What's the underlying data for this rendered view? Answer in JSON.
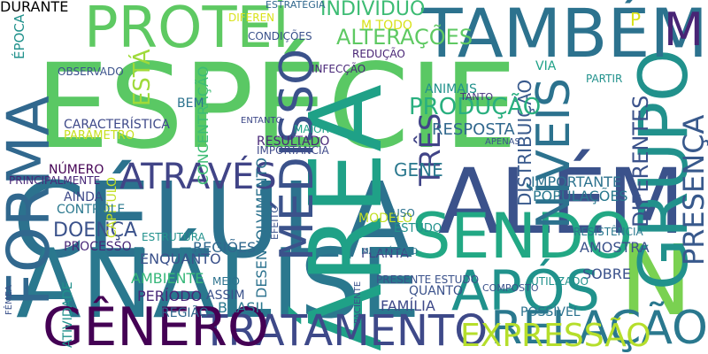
{
  "words": [
    {
      "text": "ESPÉCIE",
      "color": "#5ac864"
    },
    {
      "text": "CÉLULA",
      "color": "#2c728e"
    },
    {
      "text": "ANÁLISE",
      "color": "#2a788e"
    },
    {
      "text": "ÁREA",
      "color": "#1fa187"
    },
    {
      "text": "ALÉM",
      "color": "#3b528b"
    },
    {
      "text": "N",
      "color": "#7ad151"
    },
    {
      "text": "GRUPO",
      "color": "#21918c"
    },
    {
      "text": "TAMBÉM",
      "color": "#2c728e"
    },
    {
      "text": "FORMA",
      "color": "#31688e"
    },
    {
      "text": "PROTEÍ",
      "color": "#5ec962"
    },
    {
      "text": "SENDO",
      "color": "#22a884"
    },
    {
      "text": "APÓS",
      "color": "#20928c"
    },
    {
      "text": "NÍVEIS",
      "color": "#2c728e"
    },
    {
      "text": "TRATAMENTO",
      "color": "#3e4989"
    },
    {
      "text": "GÊNERO",
      "color": "#440154"
    },
    {
      "text": "RELAÇÃO",
      "color": "#2a788e"
    },
    {
      "text": "EXPRESSÃO",
      "color": "#b5de2b"
    },
    {
      "text": "ATRAVÉS",
      "color": "#414487"
    },
    {
      "text": "MÉDISSO",
      "color": "#3b528b"
    },
    {
      "text": "ALTERAÇÕES",
      "color": "#5ec962"
    },
    {
      "text": "INDIVÍDUO",
      "color": "#3dbc74"
    },
    {
      "text": "PRESENÇA",
      "color": "#38598c"
    },
    {
      "text": "DIFERENTES",
      "color": "#3b528b"
    },
    {
      "text": "DISTRIBUIÇÃO",
      "color": "#38598c"
    },
    {
      "text": "TRÊS",
      "color": "#414487"
    },
    {
      "text": "PRODUÇÃO",
      "color": "#29af7f"
    },
    {
      "text": "DESENVOLVIMENTO",
      "color": "#2c728e"
    },
    {
      "text": "CONCENTRAÇÃO",
      "color": "#3dbc74"
    },
    {
      "text": "ESTÁ",
      "color": "#9fda3a"
    },
    {
      "text": "M",
      "color": "#482475"
    },
    {
      "text": "P",
      "color": "#d8e219"
    },
    {
      "text": "GENE",
      "color": "#2a788e"
    },
    {
      "text": "DOENÇA",
      "color": "#3b528b"
    },
    {
      "text": "RESPOSTA",
      "color": "#31688e"
    },
    {
      "text": "IMPORTANTE",
      "color": "#2c728e"
    },
    {
      "text": "POPULAÇÕES",
      "color": "#2a788e"
    },
    {
      "text": "AMOSTRA",
      "color": "#3b528b"
    },
    {
      "text": "SOBRE",
      "color": "#3b528b"
    },
    {
      "text": "FAMÍLIA",
      "color": "#3e4989"
    },
    {
      "text": "REGIÕES",
      "color": "#31688e"
    },
    {
      "text": "PERÍODO",
      "color": "#482878"
    },
    {
      "text": "AMBIENTE",
      "color": "#35b779"
    },
    {
      "text": "ASSIM",
      "color": "#3b528b"
    },
    {
      "text": "BRASIL",
      "color": "#2a788e"
    },
    {
      "text": "CAPÍTULO",
      "color": "#c2df23"
    },
    {
      "text": "ENQUANTO",
      "color": "#3b528b"
    },
    {
      "text": "PLANTA",
      "color": "#414487"
    },
    {
      "text": "MODELO",
      "color": "#c2df23"
    },
    {
      "text": "ESTUDO",
      "color": "#21918c"
    },
    {
      "text": "RESISTÊNCIA",
      "color": "#2a788e"
    },
    {
      "text": "QUANTO",
      "color": "#3b528b"
    },
    {
      "text": "POSSÍVEL",
      "color": "#2c728e"
    },
    {
      "text": "CARACTERÍSTICA",
      "color": "#3e4989"
    },
    {
      "text": "RESULTADO",
      "color": "#482878"
    },
    {
      "text": "ANIMAIS",
      "color": "#21918c"
    },
    {
      "text": "INFECÇÃO",
      "color": "#482878"
    },
    {
      "text": "REDUÇÃO",
      "color": "#482475"
    },
    {
      "text": "CONDIÇÕES",
      "color": "#3b528b"
    },
    {
      "text": "PROCESSO",
      "color": "#482878"
    },
    {
      "text": "NÚMERO",
      "color": "#440154"
    },
    {
      "text": "PRINCIPALMENTE",
      "color": "#482878"
    },
    {
      "text": "CONTROLE",
      "color": "#2a788e"
    },
    {
      "text": "AINDA",
      "color": "#3e4989"
    },
    {
      "text": "REGIÃO",
      "color": "#31688e"
    },
    {
      "text": "OBSERVADO",
      "color": "#3b528b"
    },
    {
      "text": "BEM",
      "color": "#2c728e"
    },
    {
      "text": "PARÂMETRO",
      "color": "#c8e020"
    },
    {
      "text": "MAIOR",
      "color": "#1fa187"
    },
    {
      "text": "IMPORTÂNCIA",
      "color": "#3e4989"
    },
    {
      "text": "ESTRUTURA",
      "color": "#21918c"
    },
    {
      "text": "USO",
      "color": "#2c728e"
    },
    {
      "text": "VIA",
      "color": "#1fa187"
    },
    {
      "text": "TANTO",
      "color": "#46327e"
    },
    {
      "text": "PARTIR",
      "color": "#21918c"
    },
    {
      "text": "DIFEREN",
      "color": "#d8e219"
    },
    {
      "text": "ÉPOCA",
      "color": "#21918c"
    },
    {
      "text": "ESTRATÉGIA",
      "color": "#31688e"
    },
    {
      "text": "M TODO",
      "color": "#d8e219"
    },
    {
      "text": "ENTANTO",
      "color": "#3e4989"
    },
    {
      "text": "EFEITO",
      "color": "#3b528b"
    },
    {
      "text": "MEIO",
      "color": "#2c728e"
    },
    {
      "text": "PRESENTE ESTUDO",
      "color": "#3b528b"
    },
    {
      "text": "PACIENTE",
      "color": "#3b528b"
    },
    {
      "text": "COMPOSTO",
      "color": "#3b528b"
    },
    {
      "text": "APENAS",
      "color": "#3b528b"
    },
    {
      "text": "MACRÓFAGO",
      "color": "#2c728e"
    },
    {
      "text": "UTILIZADO",
      "color": "#21918c"
    },
    {
      "text": "FÊMEA",
      "color": "#3b528b"
    },
    {
      "text": "ATIVIDADE",
      "color": "#21918c"
    },
    {
      "text": "DURANTE",
      "color": "#2c728e"
    }
  ]
}
